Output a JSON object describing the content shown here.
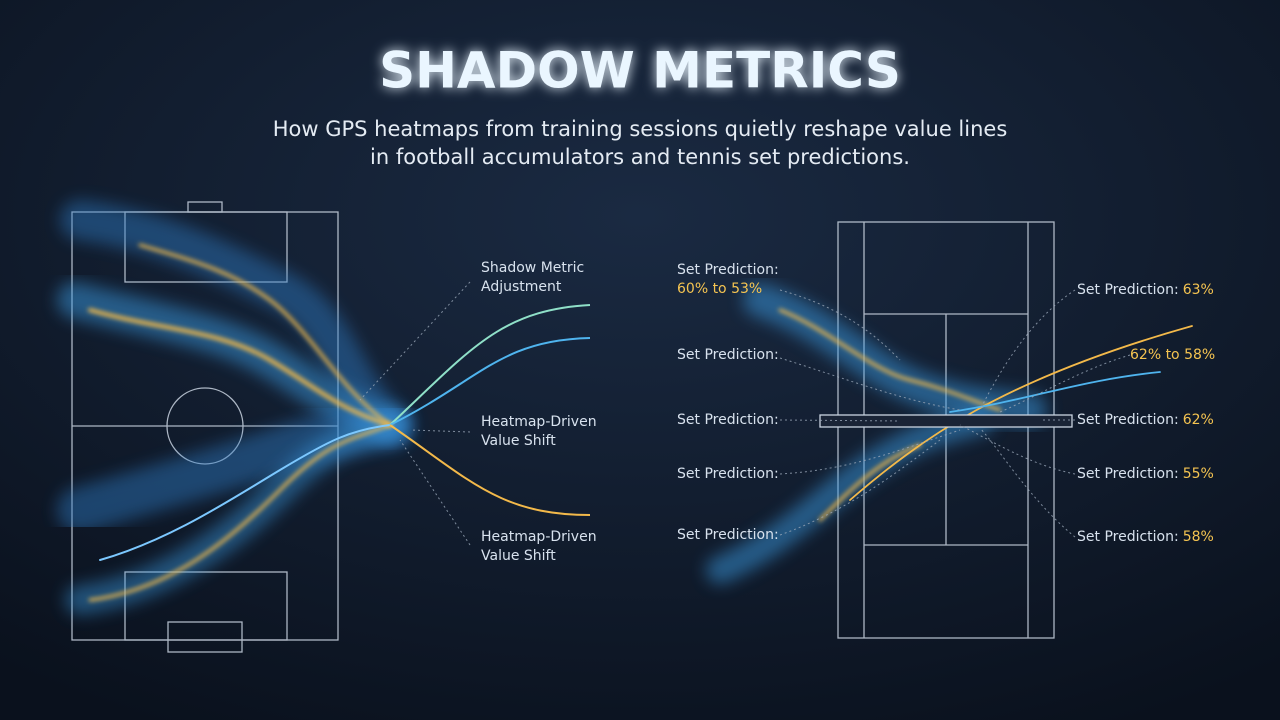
{
  "header": {
    "title": "SHADOW METRICS",
    "subtitle": [
      "How GPS heatmaps from training sessions quietly reshape value lines",
      "in football accumulators and tennis set predictions."
    ]
  },
  "football": {
    "labels": [
      {
        "lines": [
          "Shadow Metric",
          "Adjustment"
        ]
      },
      {
        "lines": [
          "Heatmap-Driven",
          "Value Shift"
        ]
      },
      {
        "lines": [
          "Heatmap-Driven",
          "Value Shift"
        ]
      }
    ]
  },
  "tennis": {
    "left_labels": [
      {
        "text": "Set Prediction:",
        "value": "60% to 53%"
      },
      {
        "text": "Set Prediction:"
      },
      {
        "text": "Set Prediction:"
      },
      {
        "text": "Set Prediction:"
      },
      {
        "text": "Set Prediction:"
      }
    ],
    "right_labels": [
      {
        "text": "Set Prediction:",
        "value": "63%"
      },
      {
        "value": "62% to 58%"
      },
      {
        "text": "Set Prediction:",
        "value": "62%"
      },
      {
        "text": "Set Prediction:",
        "value": "55%"
      },
      {
        "text": "Set Prediction:",
        "value": "58%"
      }
    ]
  }
}
